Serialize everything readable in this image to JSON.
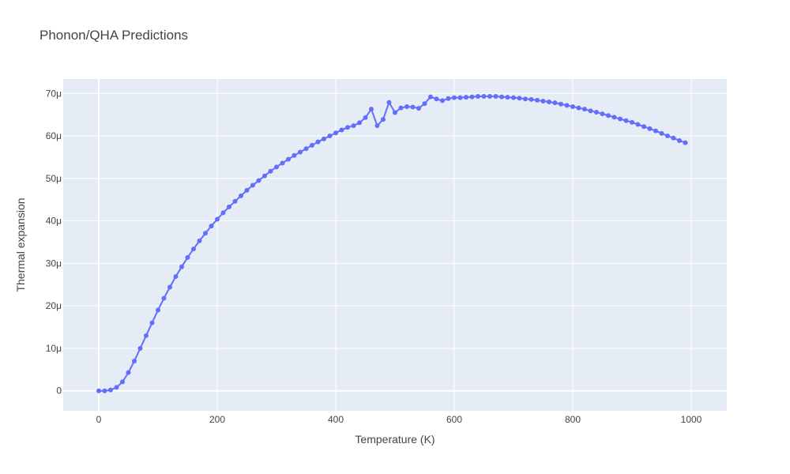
{
  "chart_data": {
    "type": "line",
    "title": "Phonon/QHA Predictions",
    "xlabel": "Temperature (K)",
    "ylabel": "Thermal expansion",
    "xlim": [
      -60,
      1060
    ],
    "ylim": [
      -4.7e-06,
      7.34e-05
    ],
    "x_ticks": [
      0,
      200,
      400,
      600,
      800,
      1000
    ],
    "x_tick_labels": [
      "0",
      "200",
      "400",
      "600",
      "800",
      "1000"
    ],
    "y_ticks": [
      0,
      1e-05,
      2e-05,
      3e-05,
      4e-05,
      5e-05,
      6e-05,
      7e-05
    ],
    "y_tick_labels": [
      "0",
      "10μ",
      "20μ",
      "30μ",
      "40μ",
      "50μ",
      "60μ",
      "70μ"
    ],
    "grid": true,
    "colors": {
      "plot_bg": "#e5ecf6",
      "grid": "#ffffff",
      "series": "#636efa"
    },
    "series": [
      {
        "mode": "lines+markers",
        "x": [
          0,
          10,
          20,
          30,
          40,
          50,
          60,
          70,
          80,
          90,
          100,
          110,
          120,
          130,
          140,
          150,
          160,
          170,
          180,
          190,
          200,
          210,
          220,
          230,
          240,
          250,
          260,
          270,
          280,
          290,
          300,
          310,
          320,
          330,
          340,
          350,
          360,
          370,
          380,
          390,
          400,
          410,
          420,
          430,
          440,
          450,
          460,
          470,
          480,
          490,
          500,
          510,
          520,
          530,
          540,
          550,
          560,
          570,
          580,
          590,
          600,
          610,
          620,
          630,
          640,
          650,
          660,
          670,
          680,
          690,
          700,
          710,
          720,
          730,
          740,
          750,
          760,
          770,
          780,
          790,
          800,
          810,
          820,
          830,
          840,
          850,
          860,
          870,
          880,
          890,
          900,
          910,
          920,
          930,
          940,
          950,
          960,
          970,
          980,
          990
        ],
        "y": [
          0,
          0,
          2e-07,
          8e-07,
          2.1e-06,
          4.3e-06,
          7e-06,
          1e-05,
          1.3e-05,
          1.6e-05,
          1.9e-05,
          2.18e-05,
          2.44e-05,
          2.69e-05,
          2.92e-05,
          3.14e-05,
          3.34e-05,
          3.53e-05,
          3.71e-05,
          3.88e-05,
          4.04e-05,
          4.19e-05,
          4.33e-05,
          4.46e-05,
          4.59e-05,
          4.72e-05,
          4.84e-05,
          4.95e-05,
          5.06e-05,
          5.17e-05,
          5.27e-05,
          5.36e-05,
          5.45e-05,
          5.54e-05,
          5.62e-05,
          5.7e-05,
          5.78e-05,
          5.86e-05,
          5.93e-05,
          6e-05,
          6.07e-05,
          6.14e-05,
          6.2e-05,
          6.24e-05,
          6.31e-05,
          6.43e-05,
          6.63e-05,
          6.24e-05,
          6.39e-05,
          6.79e-05,
          6.55e-05,
          6.66e-05,
          6.69e-05,
          6.68e-05,
          6.65e-05,
          6.76e-05,
          6.92e-05,
          6.87e-05,
          6.83e-05,
          6.88e-05,
          6.9e-05,
          6.9e-05,
          6.91e-05,
          6.92e-05,
          6.93e-05,
          6.93e-05,
          6.93e-05,
          6.93e-05,
          6.92e-05,
          6.91e-05,
          6.9e-05,
          6.89e-05,
          6.87e-05,
          6.86e-05,
          6.84e-05,
          6.82e-05,
          6.8e-05,
          6.78e-05,
          6.75e-05,
          6.72e-05,
          6.69e-05,
          6.66e-05,
          6.63e-05,
          6.59e-05,
          6.56e-05,
          6.52e-05,
          6.48e-05,
          6.44e-05,
          6.4e-05,
          6.36e-05,
          6.32e-05,
          6.27e-05,
          6.22e-05,
          6.17e-05,
          6.12e-05,
          6.06e-05,
          6e-05,
          5.95e-05,
          5.89e-05,
          5.84e-05
        ]
      }
    ]
  }
}
